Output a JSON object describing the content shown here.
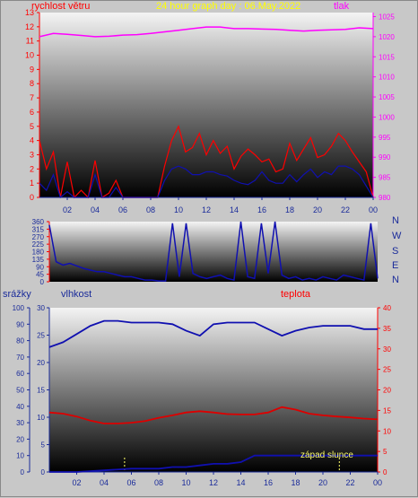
{
  "chart_data": [
    {
      "type": "line",
      "title": "24 hour graph day : 06.May.2022",
      "left_axis_label": "rychlost větru",
      "right_axis_label": "tlak",
      "x_ticks": [
        "02",
        "04",
        "06",
        "08",
        "10",
        "12",
        "14",
        "16",
        "18",
        "20",
        "22",
        "00"
      ],
      "left_ylim": [
        0,
        13
      ],
      "left_ticks": [
        "0",
        "1",
        "2",
        "3",
        "4",
        "5",
        "6",
        "7",
        "8",
        "9",
        "10",
        "11",
        "12",
        "13"
      ],
      "right_ylim": [
        980,
        1026
      ],
      "right_ticks": [
        "980",
        "985",
        "990",
        "995",
        "1000",
        "1005",
        "1010",
        "1015",
        "1020",
        "1025"
      ],
      "colors": {
        "gust": "#ff0000",
        "speed": "#1010b0",
        "pressure": "#ff00ff",
        "axis_left": "#ff0000",
        "axis_right": "#ff00ff",
        "title": "#ffff00"
      },
      "series": [
        {
          "key": "pressure",
          "axis": "right",
          "x": [
            0,
            1,
            2,
            3,
            4,
            5,
            6,
            7,
            8,
            9,
            10,
            11,
            12,
            13,
            14,
            15,
            16,
            17,
            18,
            19,
            20,
            21,
            22,
            23,
            24
          ],
          "values": [
            1020.0,
            1020.8,
            1020.6,
            1020.3,
            1020.0,
            1020.1,
            1020.4,
            1020.5,
            1020.8,
            1021.2,
            1021.6,
            1022.0,
            1022.4,
            1022.4,
            1022.0,
            1022.0,
            1021.9,
            1021.8,
            1021.6,
            1021.4,
            1021.6,
            1021.7,
            1021.8,
            1022.2,
            1022.0
          ]
        },
        {
          "key": "gust",
          "axis": "left",
          "x": [
            0,
            0.5,
            1,
            1.5,
            2,
            2.5,
            3,
            3.5,
            4,
            4.5,
            5,
            5.5,
            6,
            6.5,
            7,
            7.5,
            8,
            8.5,
            9,
            9.5,
            10,
            10.5,
            11,
            11.5,
            12,
            12.5,
            13,
            13.5,
            14,
            14.5,
            15,
            15.5,
            16,
            16.5,
            17,
            17.5,
            18,
            18.5,
            19,
            19.5,
            20,
            20.5,
            21,
            21.5,
            22,
            22.5,
            23,
            23.5,
            24
          ],
          "values": [
            4,
            2,
            3.2,
            0,
            2.5,
            0,
            0.5,
            0,
            2.6,
            0,
            0.3,
            1.2,
            0,
            0,
            0,
            0,
            0,
            0,
            2.2,
            4,
            5,
            3.2,
            3.5,
            4.5,
            3,
            4,
            3.1,
            3.6,
            2,
            2.9,
            3.4,
            3,
            2.5,
            2.7,
            1.8,
            2,
            3.8,
            2.6,
            3.4,
            4.2,
            2.8,
            3,
            3.6,
            4.5,
            4,
            3.2,
            2.5,
            1.8,
            0
          ]
        },
        {
          "key": "speed",
          "axis": "left",
          "x": [
            0,
            0.5,
            1,
            1.5,
            2,
            2.5,
            3,
            3.5,
            4,
            4.5,
            5,
            5.5,
            6,
            6.5,
            7,
            7.5,
            8,
            8.5,
            9,
            9.5,
            10,
            10.5,
            11,
            11.5,
            12,
            12.5,
            13,
            13.5,
            14,
            14.5,
            15,
            15.5,
            16,
            16.5,
            17,
            17.5,
            18,
            18.5,
            19,
            19.5,
            20,
            20.5,
            21,
            21.5,
            22,
            22.5,
            23,
            23.5,
            24
          ],
          "values": [
            1,
            0.5,
            1.6,
            0,
            0.4,
            0,
            0,
            0,
            1.6,
            0,
            0,
            0.7,
            0,
            0,
            0,
            0,
            0,
            0,
            1.2,
            2,
            2.2,
            2,
            1.6,
            1.6,
            1.8,
            1.8,
            1.6,
            1.5,
            1.2,
            1,
            0.9,
            1.2,
            1.8,
            1.2,
            1,
            1,
            1.6,
            1.1,
            1.6,
            2,
            1.4,
            1.8,
            1.6,
            2.2,
            2.2,
            2,
            1.6,
            0.8,
            0
          ]
        }
      ]
    },
    {
      "type": "line",
      "title": "",
      "ylim": [
        0,
        360
      ],
      "y_ticks": [
        "0",
        "45",
        "90",
        "135",
        "180",
        "225",
        "270",
        "315",
        "360"
      ],
      "direction_labels": [
        "N",
        "W",
        "S",
        "E",
        "N"
      ],
      "colors": {
        "direction": "#1010b0",
        "axis": "#ff0000",
        "labels": "#1a2b9a"
      },
      "series": [
        {
          "key": "direction",
          "x": [
            0,
            0.5,
            1,
            1.5,
            2,
            2.5,
            3,
            3.5,
            4,
            4.5,
            5,
            5.5,
            6,
            6.5,
            7,
            7.5,
            8,
            8.5,
            9,
            9.5,
            10,
            10.5,
            11,
            11.5,
            12,
            12.5,
            13,
            13.5,
            14,
            14.5,
            15,
            15.5,
            16,
            16.5,
            17,
            17.5,
            18,
            18.5,
            19,
            19.5,
            20,
            20.5,
            21,
            21.5,
            22,
            22.5,
            23,
            23.5,
            24
          ],
          "values": [
            340,
            120,
            100,
            110,
            95,
            80,
            70,
            60,
            60,
            50,
            40,
            30,
            30,
            20,
            10,
            10,
            5,
            5,
            350,
            30,
            350,
            50,
            30,
            20,
            30,
            40,
            20,
            10,
            360,
            30,
            20,
            350,
            50,
            360,
            40,
            20,
            30,
            10,
            20,
            10,
            30,
            20,
            10,
            40,
            30,
            20,
            10,
            350,
            20
          ]
        }
      ]
    },
    {
      "type": "line",
      "left_axis_label": "srážky",
      "mid_axis_label": "vlhkost",
      "right_axis_label": "teplota",
      "annotation": "západ slunce",
      "x_ticks": [
        "02",
        "04",
        "06",
        "08",
        "10",
        "12",
        "14",
        "16",
        "18",
        "20",
        "22",
        "00"
      ],
      "rain_ticks": [
        "0",
        "10",
        "20",
        "30",
        "40",
        "50",
        "60",
        "70",
        "80",
        "90",
        "100"
      ],
      "humidity_ticks": [
        "0",
        "5",
        "10",
        "15",
        "20",
        "25",
        "30"
      ],
      "temperature_ticks": [
        "0",
        "5",
        "10",
        "15",
        "20",
        "25",
        "30",
        "35",
        "40"
      ],
      "rain_ylim": [
        0,
        100
      ],
      "humidity_ylim": [
        0,
        30
      ],
      "temperature_ylim": [
        0,
        40
      ],
      "colors": {
        "humidity": "#1010b0",
        "temperature": "#dd0000",
        "rain": "#1010b0",
        "annotation": "#ffff66",
        "axis_left": "#1a2b9a",
        "axis_mid": "#1a2b9a",
        "axis_right": "#ff0000"
      },
      "series": [
        {
          "key": "humidity",
          "axis": "rain",
          "x": [
            0,
            1,
            2,
            3,
            4,
            5,
            6,
            7,
            8,
            9,
            10,
            11,
            12,
            13,
            14,
            15,
            16,
            17,
            18,
            19,
            20,
            21,
            22,
            23,
            24
          ],
          "values": [
            76,
            79,
            84,
            89,
            92,
            92,
            91,
            91,
            91,
            90,
            86,
            83,
            90,
            91,
            91,
            91,
            87,
            83,
            86,
            88,
            89,
            89,
            89,
            87,
            87
          ]
        },
        {
          "key": "temperature",
          "axis": "temperature",
          "x": [
            0,
            1,
            2,
            3,
            4,
            5,
            6,
            7,
            8,
            9,
            10,
            11,
            12,
            13,
            14,
            15,
            16,
            17,
            18,
            19,
            20,
            21,
            22,
            23,
            24
          ],
          "values": [
            14.5,
            14.2,
            13.5,
            12.5,
            11.8,
            11.8,
            12.0,
            12.4,
            13.2,
            13.8,
            14.5,
            14.8,
            14.5,
            14.1,
            14.0,
            14.0,
            14.5,
            15.8,
            15.2,
            14.2,
            13.8,
            13.5,
            13.3,
            13.0,
            12.8
          ]
        },
        {
          "key": "rain",
          "axis": "rain",
          "x": [
            0,
            2,
            4,
            6,
            8,
            9,
            10,
            11,
            12,
            13,
            14,
            15,
            16,
            18,
            20,
            22,
            24
          ],
          "values": [
            0,
            0,
            1,
            2,
            2,
            3,
            3,
            4,
            5,
            5,
            6,
            10,
            10,
            10,
            10,
            10,
            10
          ]
        }
      ],
      "markers_x": [
        5.5,
        21.2
      ]
    }
  ]
}
